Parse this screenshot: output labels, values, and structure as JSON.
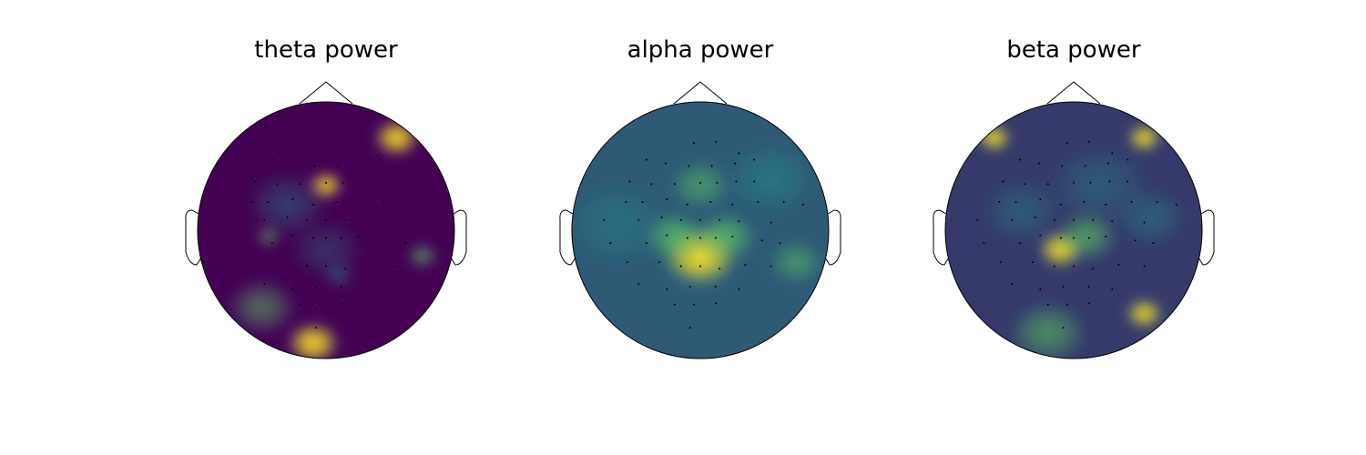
{
  "chart_data": [
    {
      "type": "heatmap",
      "subtype": "eeg-topomap",
      "title": "theta power",
      "colormap": "viridis",
      "colors": {
        "low": "#440154",
        "mid": "#21918c",
        "high": "#fde725"
      },
      "hotspots": [
        {
          "x": 0.0,
          "y": 0.35,
          "value": 0.95,
          "spread": 0.09
        },
        {
          "x": 0.55,
          "y": 0.72,
          "value": 1.0,
          "spread": 0.12
        },
        {
          "x": -0.3,
          "y": 0.2,
          "value": 0.45,
          "spread": 0.2
        },
        {
          "x": -0.45,
          "y": -0.05,
          "value": 0.6,
          "spread": 0.07
        },
        {
          "x": 0.0,
          "y": -0.15,
          "value": 0.35,
          "spread": 0.18
        },
        {
          "x": 0.1,
          "y": -0.35,
          "value": 0.5,
          "spread": 0.08
        },
        {
          "x": 0.75,
          "y": -0.2,
          "value": 0.7,
          "spread": 0.08
        },
        {
          "x": -0.1,
          "y": -0.88,
          "value": 1.0,
          "spread": 0.14
        },
        {
          "x": -0.5,
          "y": -0.6,
          "value": 0.55,
          "spread": 0.18
        }
      ],
      "baseline": 0.0
    },
    {
      "type": "heatmap",
      "subtype": "eeg-topomap",
      "title": "alpha power",
      "colormap": "viridis",
      "colors": {
        "low": "#440154",
        "mid": "#21918c",
        "high": "#fde725"
      },
      "hotspots": [
        {
          "x": 0.0,
          "y": -0.2,
          "value": 1.0,
          "spread": 0.2
        },
        {
          "x": -0.2,
          "y": -0.05,
          "value": 0.75,
          "spread": 0.16
        },
        {
          "x": 0.2,
          "y": -0.05,
          "value": 0.75,
          "spread": 0.16
        },
        {
          "x": 0.0,
          "y": 0.35,
          "value": 0.55,
          "spread": 0.16
        },
        {
          "x": 0.55,
          "y": 0.4,
          "value": 0.5,
          "spread": 0.22
        },
        {
          "x": 0.75,
          "y": -0.25,
          "value": 0.55,
          "spread": 0.14
        },
        {
          "x": -0.65,
          "y": 0.05,
          "value": 0.4,
          "spread": 0.25
        }
      ],
      "baseline": 0.28
    },
    {
      "type": "heatmap",
      "subtype": "eeg-topomap",
      "title": "beta power",
      "colormap": "viridis",
      "colors": {
        "low": "#440154",
        "mid": "#21918c",
        "high": "#fde725"
      },
      "hotspots": [
        {
          "x": -0.62,
          "y": 0.72,
          "value": 1.0,
          "spread": 0.09
        },
        {
          "x": 0.55,
          "y": 0.72,
          "value": 1.0,
          "spread": 0.09
        },
        {
          "x": -0.1,
          "y": -0.15,
          "value": 1.0,
          "spread": 0.12
        },
        {
          "x": 0.1,
          "y": -0.05,
          "value": 0.7,
          "spread": 0.16
        },
        {
          "x": 0.55,
          "y": -0.65,
          "value": 0.95,
          "spread": 0.1
        },
        {
          "x": -0.2,
          "y": -0.8,
          "value": 0.6,
          "spread": 0.2
        },
        {
          "x": 0.2,
          "y": 0.35,
          "value": 0.4,
          "spread": 0.25
        },
        {
          "x": -0.4,
          "y": 0.15,
          "value": 0.4,
          "spread": 0.2
        },
        {
          "x": 0.6,
          "y": 0.1,
          "value": 0.45,
          "spread": 0.18
        }
      ],
      "baseline": 0.18
    }
  ],
  "sensors": [
    [
      -0.05,
      0.68
    ],
    [
      0.12,
      0.69
    ],
    [
      0.3,
      0.6
    ],
    [
      -0.42,
      0.55
    ],
    [
      -0.27,
      0.52
    ],
    [
      -0.09,
      0.5
    ],
    [
      0.09,
      0.5
    ],
    [
      0.27,
      0.52
    ],
    [
      0.42,
      0.55
    ],
    [
      -0.55,
      0.38
    ],
    [
      -0.38,
      0.36
    ],
    [
      -0.2,
      0.36
    ],
    [
      0.0,
      0.37
    ],
    [
      0.13,
      0.37
    ],
    [
      0.28,
      0.38
    ],
    [
      0.42,
      0.38
    ],
    [
      -0.58,
      0.22
    ],
    [
      -0.45,
      0.22
    ],
    [
      -0.26,
      0.24
    ],
    [
      -0.1,
      0.2
    ],
    [
      0.08,
      0.22
    ],
    [
      0.25,
      0.2
    ],
    [
      0.45,
      0.22
    ],
    [
      0.65,
      0.22
    ],
    [
      0.8,
      0.2
    ],
    [
      -0.75,
      0.08
    ],
    [
      -0.48,
      0.08
    ],
    [
      -0.3,
      0.1
    ],
    [
      -0.15,
      0.08
    ],
    [
      0.0,
      0.08
    ],
    [
      0.15,
      0.08
    ],
    [
      0.3,
      0.07
    ],
    [
      0.55,
      0.06
    ],
    [
      -0.7,
      -0.1
    ],
    [
      -0.42,
      -0.1
    ],
    [
      -0.26,
      -0.04
    ],
    [
      -0.1,
      -0.06
    ],
    [
      0.0,
      -0.06
    ],
    [
      0.12,
      -0.06
    ],
    [
      0.25,
      -0.05
    ],
    [
      0.48,
      -0.08
    ],
    [
      0.62,
      -0.1
    ],
    [
      -0.57,
      -0.25
    ],
    [
      -0.32,
      -0.25
    ],
    [
      -0.15,
      -0.28
    ],
    [
      0.0,
      -0.28
    ],
    [
      0.15,
      -0.3
    ],
    [
      0.35,
      -0.27
    ],
    [
      0.55,
      -0.28
    ],
    [
      -0.48,
      -0.42
    ],
    [
      -0.26,
      -0.46
    ],
    [
      -0.08,
      -0.44
    ],
    [
      0.12,
      -0.44
    ],
    [
      0.3,
      -0.46
    ],
    [
      -0.2,
      -0.58
    ],
    [
      -0.05,
      -0.58
    ],
    [
      0.12,
      -0.57
    ],
    [
      -0.08,
      -0.76
    ]
  ]
}
